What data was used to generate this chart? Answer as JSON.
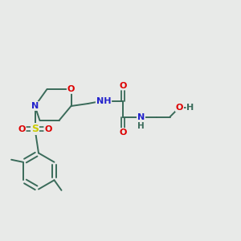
{
  "background_color": "#e8eae8",
  "bond_color": "#3a6b5a",
  "atom_colors": {
    "O": "#dd0000",
    "N": "#2222cc",
    "S": "#cccc00",
    "H": "#3a6b5a",
    "C": "#3a6b5a"
  },
  "figsize": [
    3.0,
    3.0
  ],
  "dpi": 100
}
